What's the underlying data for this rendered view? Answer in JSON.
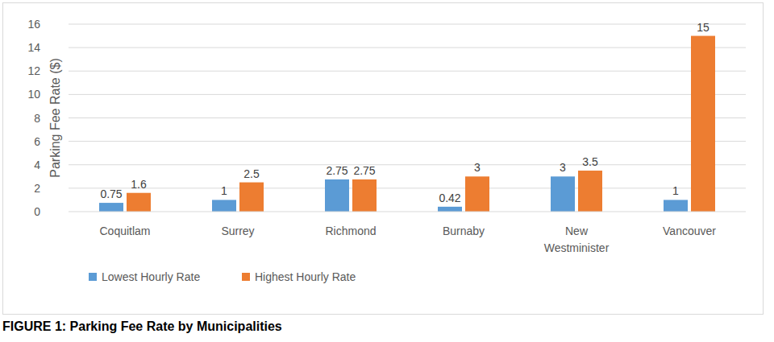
{
  "chart_data": {
    "type": "bar",
    "title": "FIGURE 1: Parking Fee Rate by Municipalities",
    "y_label": "Parking Fee Rate ($)",
    "categories": [
      "Coquitlam",
      "Surrey",
      "Richmond",
      "Burnaby",
      "New Westminister",
      "Vancouver"
    ],
    "series": [
      {
        "name": "Lowest Hourly Rate",
        "color": "#5b9bd5",
        "values": [
          0.75,
          1,
          2.75,
          0.42,
          3,
          1
        ]
      },
      {
        "name": "Highest Hourly Rate",
        "color": "#ed7d31",
        "values": [
          1.6,
          2.5,
          2.75,
          3,
          3.5,
          15
        ]
      }
    ],
    "ylim": [
      0,
      16
    ],
    "yticks": [
      0,
      2,
      4,
      6,
      8,
      10,
      12,
      14,
      16
    ],
    "grid": true,
    "legend": "bottom-left",
    "data_labels": true
  }
}
